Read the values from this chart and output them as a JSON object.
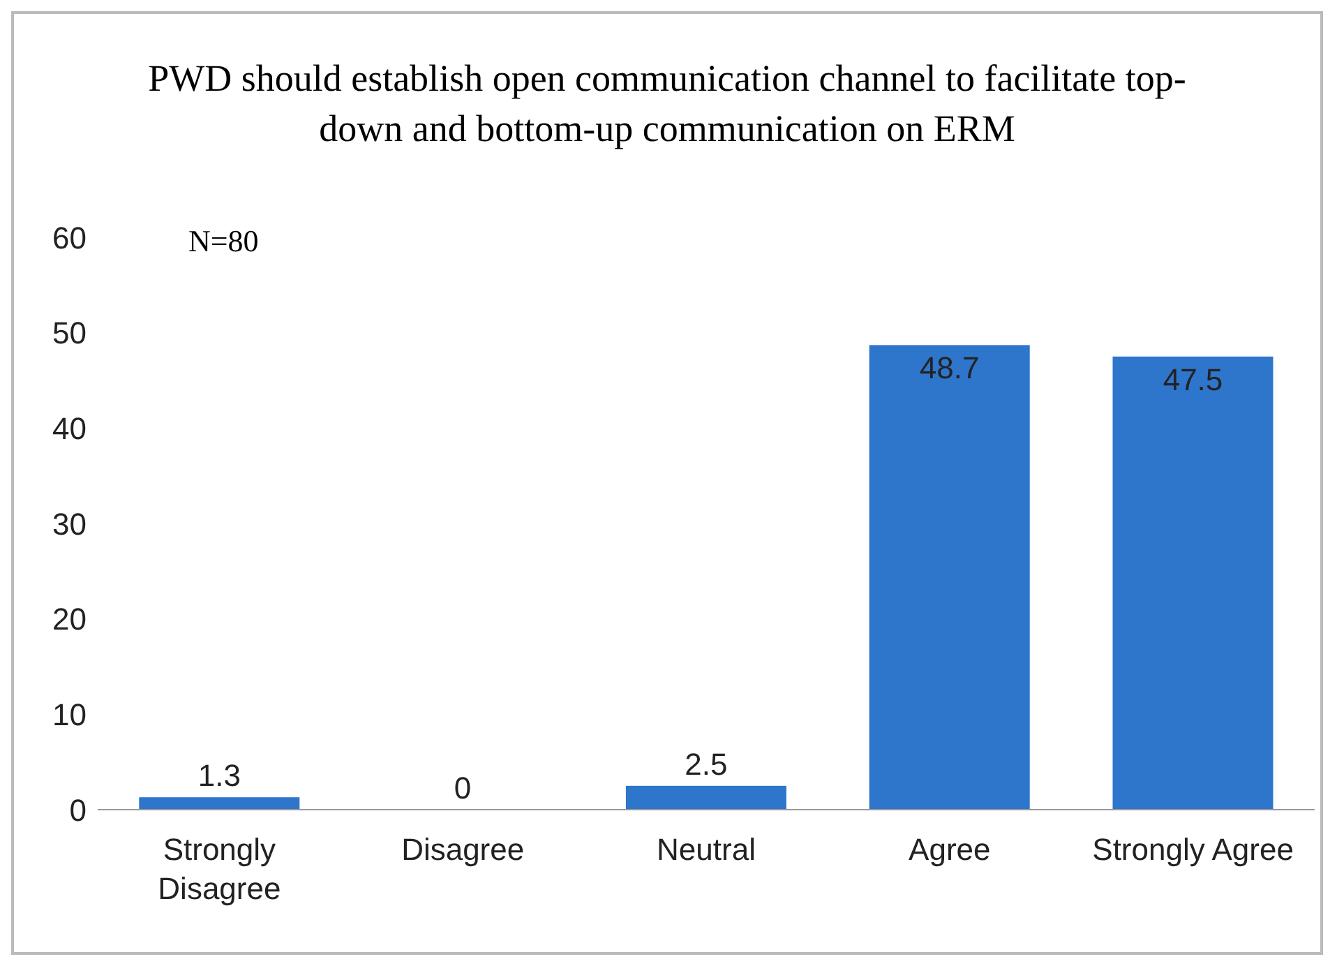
{
  "chart_data": {
    "type": "bar",
    "title": "PWD should establish open communication channel to facilitate top-down and bottom-up communication on ERM",
    "categories": [
      "Strongly Disagree",
      "Disagree",
      "Neutral",
      "Agree",
      "Strongly Agree"
    ],
    "values": [
      1.3,
      0,
      2.5,
      48.7,
      47.5
    ],
    "color": "#2e75cc",
    "ylim": [
      0,
      60
    ],
    "yticks": [
      0,
      10,
      20,
      30,
      40,
      50,
      60
    ],
    "grid": false,
    "data_labels": true,
    "annotations": [
      "N=80"
    ]
  }
}
